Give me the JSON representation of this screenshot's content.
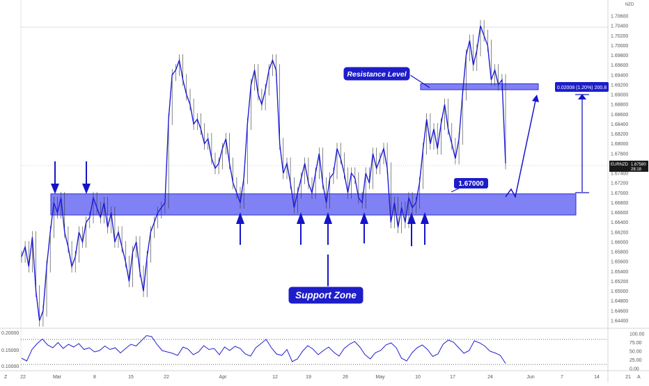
{
  "symbol_label": "EURNZD",
  "currency_label": "NZD",
  "price_label": {
    "value": "1.67580",
    "countdown": "28:18"
  },
  "y_ticks": [
    "1.70600",
    "1.70400",
    "1.70200",
    "1.70000",
    "1.69800",
    "1.69600",
    "1.69400",
    "1.69200",
    "1.69000",
    "1.68800",
    "1.68600",
    "1.68400",
    "1.68200",
    "1.68000",
    "1.67800",
    "1.67600",
    "1.67400",
    "1.67200",
    "1.67000",
    "1.66800",
    "1.66600",
    "1.66400",
    "1.66200",
    "1.66000",
    "1.65800",
    "1.65600",
    "1.65400",
    "1.65200",
    "1.65000",
    "1.64800",
    "1.64600",
    "1.64400"
  ],
  "x_ticks": [
    "22",
    "Mar",
    "8",
    "15",
    "22",
    "Apr",
    "12",
    "19",
    "26",
    "May",
    "10",
    "17",
    "24",
    "Jun",
    "7",
    "14",
    "21"
  ],
  "x_tick_edges": {
    "left": "Z",
    "right": "A"
  },
  "osc_left_ticks": [
    "0.20000",
    "0.15000",
    "0.10000"
  ],
  "osc_right_ticks": [
    "100.00",
    "75.00",
    "50.00",
    "25.00",
    "0.00"
  ],
  "annotations": {
    "resistance": "Resistance Level",
    "support": "Support Zone",
    "level": "1.67000",
    "measure": "0.02008 (1.20%) 200.8"
  },
  "colors": {
    "price_line": "#1c1cd6",
    "zone_fill": "#6b6bf5",
    "zone_border": "#2a2ad0",
    "arrow": "#1414c8",
    "callout_bg": "#1d1dc9",
    "oscillator": "#2020d0"
  },
  "chart_data": {
    "type": "line",
    "title": "",
    "xlabel": "",
    "ylabel": "",
    "ylim": [
      1.643,
      1.7075
    ],
    "x_range": [
      "Feb 22",
      "Jun 21"
    ],
    "grid": false,
    "series": [
      {
        "values": [
          1.657,
          1.659,
          1.655,
          1.661,
          1.65,
          1.644,
          1.646,
          1.655,
          1.662,
          1.668,
          1.666,
          1.669,
          1.662,
          1.659,
          1.655,
          1.657,
          1.662,
          1.66,
          1.664,
          1.665,
          1.669,
          1.667,
          1.665,
          1.668,
          1.663,
          1.666,
          1.66,
          1.662,
          1.659,
          1.656,
          1.652,
          1.658,
          1.66,
          1.654,
          1.65,
          1.657,
          1.662,
          1.664,
          1.666,
          1.667,
          1.668,
          1.685,
          1.694,
          1.695,
          1.697,
          1.693,
          1.69,
          1.688,
          1.684,
          1.685,
          1.683,
          1.68,
          1.681,
          1.677,
          1.675,
          1.676,
          1.679,
          1.681,
          1.676,
          1.672,
          1.67,
          1.668,
          1.673,
          1.684,
          1.692,
          1.695,
          1.69,
          1.688,
          1.691,
          1.695,
          1.697,
          1.695,
          1.68,
          1.674,
          1.676,
          1.672,
          1.667,
          1.67,
          1.673,
          1.676,
          1.672,
          1.67,
          1.674,
          1.678,
          1.672,
          1.668,
          1.673,
          1.674,
          1.679,
          1.677,
          1.674,
          1.67,
          1.674,
          1.673,
          1.669,
          1.668,
          1.674,
          1.672,
          1.678,
          1.675,
          1.677,
          1.679,
          1.675,
          1.664,
          1.668,
          1.663,
          1.667,
          1.664,
          1.669,
          1.667,
          1.668,
          1.672,
          1.679,
          1.685,
          1.68,
          1.683,
          1.679,
          1.684,
          1.688,
          1.683,
          1.68,
          1.677,
          1.681,
          1.69,
          1.698,
          1.701,
          1.696,
          1.699,
          1.704,
          1.702,
          1.7,
          1.693,
          1.695,
          1.692,
          1.693,
          1.676
        ]
      }
    ],
    "support_zone": [
      1.6655,
      1.6698
    ],
    "resistance_zone": [
      1.691,
      1.6922
    ],
    "level_line": 1.67,
    "current_price": 1.6758,
    "resistance_level": 1.691,
    "oscillator": {
      "ylim": [
        0,
        100
      ],
      "levels": [
        75,
        25
      ],
      "values": [
        30,
        22,
        55,
        72,
        85,
        68,
        60,
        75,
        58,
        70,
        62,
        72,
        55,
        60,
        48,
        52,
        65,
        55,
        60,
        45,
        58,
        70,
        65,
        80,
        95,
        92,
        70,
        52,
        48,
        44,
        38,
        62,
        56,
        40,
        48,
        66,
        55,
        58,
        40,
        62,
        52,
        64,
        58,
        42,
        36,
        60,
        72,
        84,
        60,
        42,
        38,
        55,
        20,
        28,
        50,
        66,
        56,
        40,
        52,
        62,
        47,
        36,
        58,
        70,
        78,
        62,
        40,
        28,
        46,
        52,
        68,
        74,
        60,
        30,
        22,
        45,
        60,
        68,
        55,
        35,
        42,
        70,
        82,
        76,
        60,
        44,
        52,
        80,
        74,
        65,
        50,
        45,
        38,
        15
      ]
    }
  }
}
